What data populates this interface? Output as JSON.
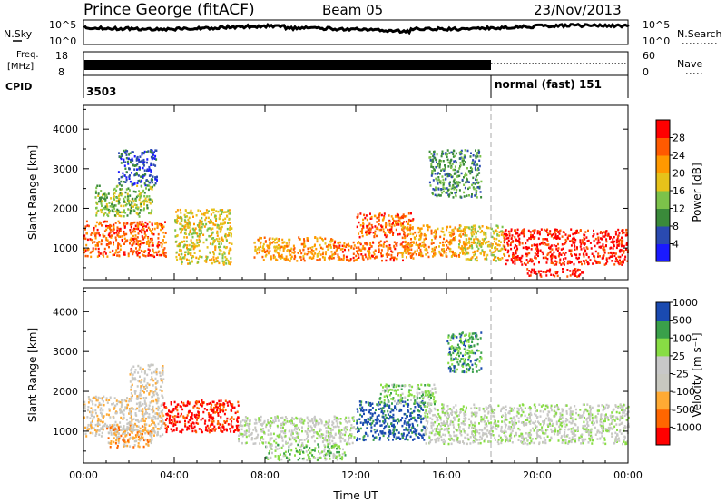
{
  "header": {
    "station": "Prince George (fitACF)",
    "beam": "Beam 05",
    "date": "23/Nov/2013"
  },
  "panels": {
    "nsky": {
      "left_label": "N.Sky",
      "right_label": "N.Search",
      "ticks": [
        "10^5",
        "10^0"
      ]
    },
    "freq": {
      "left_label_1": "Freq.",
      "left_label_2": "[MHz]",
      "left_ticks": [
        "18",
        "8"
      ],
      "right_label": "Nave",
      "right_ticks": [
        "60",
        "0"
      ]
    },
    "cpid": {
      "label": "CPID",
      "value_1": "3503",
      "value_2": "normal (fast) 151"
    }
  },
  "colors": {
    "power": [
      "#1a1aff",
      "#2a4ab0",
      "#3a8a3a",
      "#7cc24a",
      "#e6c21a",
      "#ff9900",
      "#ff5a00",
      "#ff0000"
    ],
    "velocity": [
      "#ff0000",
      "#ff6600",
      "#ffaa33",
      "#c8c8c0",
      "#c8c8c8",
      "#88dd44",
      "#3aa04a",
      "#1a4ab0"
    ]
  },
  "chart_data": [
    {
      "type": "heatmap",
      "ylabel": "Slant Range [km]",
      "xlabel": "Time UT",
      "x_ticks": [
        "00:00",
        "04:00",
        "08:00",
        "12:00",
        "16:00",
        "20:00",
        "00:00"
      ],
      "y_ticks": [
        "1000",
        "2000",
        "3000",
        "4000"
      ],
      "ylim": [
        200,
        4600
      ],
      "xlim_hours": [
        0,
        24
      ],
      "colorbar": {
        "label": "Power [dB]",
        "ticks": [
          "4",
          "8",
          "12",
          "16",
          "20",
          "24",
          "28"
        ]
      },
      "regions": [
        {
          "t0": 0.0,
          "t1": 3.6,
          "r0": 800,
          "r1": 1700,
          "level": 6
        },
        {
          "t0": 0.5,
          "t1": 3.0,
          "r0": 1800,
          "r1": 2600,
          "level": 3
        },
        {
          "t0": 1.5,
          "t1": 3.2,
          "r0": 2600,
          "r1": 3500,
          "level": 1
        },
        {
          "t0": 4.0,
          "t1": 6.5,
          "r0": 600,
          "r1": 2000,
          "level": 4
        },
        {
          "t0": 7.5,
          "t1": 11.0,
          "r0": 700,
          "r1": 1300,
          "level": 5
        },
        {
          "t0": 11.0,
          "t1": 14.5,
          "r0": 700,
          "r1": 1200,
          "level": 6
        },
        {
          "t0": 12.0,
          "t1": 14.5,
          "r0": 1300,
          "r1": 1900,
          "level": 6
        },
        {
          "t0": 14.0,
          "t1": 16.8,
          "r0": 800,
          "r1": 1600,
          "level": 5
        },
        {
          "t0": 15.2,
          "t1": 17.5,
          "r0": 2300,
          "r1": 3500,
          "level": 2
        },
        {
          "t0": 16.5,
          "t1": 18.5,
          "r0": 700,
          "r1": 1600,
          "level": 4
        },
        {
          "t0": 18.5,
          "t1": 24.0,
          "r0": 600,
          "r1": 1500,
          "level": 7
        },
        {
          "t0": 19.5,
          "t1": 22.0,
          "r0": 300,
          "r1": 500,
          "level": 7
        }
      ]
    },
    {
      "type": "heatmap",
      "ylabel": "Slant Range [km]",
      "xlabel": "Time UT",
      "x_ticks": [
        "00:00",
        "04:00",
        "08:00",
        "12:00",
        "16:00",
        "20:00",
        "00:00"
      ],
      "y_ticks": [
        "1000",
        "2000",
        "3000",
        "4000"
      ],
      "ylim": [
        200,
        4600
      ],
      "xlim_hours": [
        0,
        24
      ],
      "colorbar": {
        "label": "Velocity [m s⁻¹]",
        "ticks": [
          "-1000",
          "-500",
          "-100",
          "-25",
          "25",
          "100",
          "500",
          "1000"
        ]
      },
      "regions": [
        {
          "t0": 0.0,
          "t1": 3.5,
          "r0": 900,
          "r1": 1900,
          "level": 3
        },
        {
          "t0": 2.0,
          "t1": 3.5,
          "r0": 1900,
          "r1": 2700,
          "level": 3
        },
        {
          "t0": 1.0,
          "t1": 3.0,
          "r0": 600,
          "r1": 1200,
          "level": 2
        },
        {
          "t0": 3.5,
          "t1": 6.8,
          "r0": 1000,
          "r1": 1800,
          "level": 0
        },
        {
          "t0": 6.8,
          "t1": 12.0,
          "r0": 700,
          "r1": 1400,
          "level": 4
        },
        {
          "t0": 8.0,
          "t1": 11.5,
          "r0": 300,
          "r1": 700,
          "level": 5
        },
        {
          "t0": 12.0,
          "t1": 15.0,
          "r0": 800,
          "r1": 1800,
          "level": 7
        },
        {
          "t0": 13.0,
          "t1": 15.5,
          "r0": 1700,
          "r1": 2200,
          "level": 5
        },
        {
          "t0": 15.0,
          "t1": 24.0,
          "r0": 700,
          "r1": 1700,
          "level": 4
        },
        {
          "t0": 16.0,
          "t1": 17.5,
          "r0": 2500,
          "r1": 3500,
          "level": 6
        }
      ]
    }
  ]
}
